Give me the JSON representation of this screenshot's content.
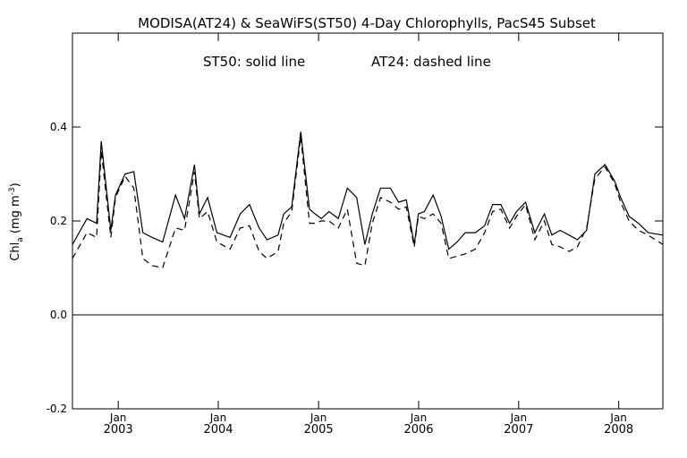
{
  "chart_data": {
    "type": "line",
    "title": "MODISA(AT24) & SeaWiFS(ST50) 4-Day Chlorophylls, PacS45 Subset",
    "annotation_left": "ST50: solid line",
    "annotation_right": "AT24: dashed line",
    "ylabel": "Chl",
    "ylabel_sub": "a",
    "ylabel_units_open": " (mg m",
    "ylabel_units_sup": "-3",
    "ylabel_units_close": ")",
    "ylim": [
      -0.2,
      0.6
    ],
    "yticks": [
      {
        "value": -0.2,
        "label": "-0.2"
      },
      {
        "value": 0.0,
        "label": "0.0"
      },
      {
        "value": 0.2,
        "label": "0.2"
      },
      {
        "value": 0.4,
        "label": "0.4"
      }
    ],
    "xlim": [
      "2002-07-18",
      "2008-06-10"
    ],
    "xticks_month": [
      {
        "date": "2003-01-01",
        "label": "Jan"
      },
      {
        "date": "2004-01-01",
        "label": "Jan"
      },
      {
        "date": "2005-01-01",
        "label": "Jan"
      },
      {
        "date": "2006-01-01",
        "label": "Jan"
      },
      {
        "date": "2007-01-01",
        "label": "Jan"
      },
      {
        "date": "2008-01-01",
        "label": "Jan"
      }
    ],
    "xticks_year": [
      {
        "date": "2003-01-01",
        "label": "2003"
      },
      {
        "date": "2004-01-01",
        "label": "2004"
      },
      {
        "date": "2005-01-01",
        "label": "2005"
      },
      {
        "date": "2006-01-01",
        "label": "2006"
      },
      {
        "date": "2007-01-01",
        "label": "2007"
      },
      {
        "date": "2008-01-01",
        "label": "2008"
      }
    ],
    "zero_line": 0.0,
    "grid": false,
    "legend": "none",
    "series": [
      {
        "line_style": "solid",
        "x": [
          "2002-07-18",
          "2002-09-09",
          "2002-10-14",
          "2002-10-31",
          "2002-12-05",
          "2002-12-22",
          "2003-01-26",
          "2003-02-27",
          "2003-04-01",
          "2003-05-05",
          "2003-06-12",
          "2003-07-29",
          "2003-08-31",
          "2003-10-06",
          "2003-10-24",
          "2003-11-23",
          "2003-12-27",
          "2004-02-13",
          "2004-03-21",
          "2004-04-24",
          "2004-05-29",
          "2004-06-27",
          "2004-08-06",
          "2004-08-27",
          "2004-09-25",
          "2004-10-28",
          "2004-11-29",
          "2004-12-19",
          "2005-01-11",
          "2005-02-08",
          "2005-03-14",
          "2005-04-16",
          "2005-05-20",
          "2005-06-19",
          "2005-07-16",
          "2005-08-15",
          "2005-09-20",
          "2005-10-20",
          "2005-11-17",
          "2005-12-16",
          "2005-12-31",
          "2006-01-22",
          "2006-02-23",
          "2006-03-24",
          "2006-04-21",
          "2006-05-21",
          "2006-06-20",
          "2006-07-27",
          "2006-08-30",
          "2006-09-28",
          "2006-10-28",
          "2006-11-29",
          "2006-12-24",
          "2007-01-26",
          "2007-03-01",
          "2007-04-05",
          "2007-05-02",
          "2007-06-01",
          "2007-07-04",
          "2007-08-03",
          "2007-09-06",
          "2007-10-06",
          "2007-11-12",
          "2007-12-17",
          "2008-01-08",
          "2008-02-08",
          "2008-03-13",
          "2008-04-17",
          "2008-06-10"
        ],
        "y": [
          0.15,
          0.205,
          0.195,
          0.37,
          0.18,
          0.255,
          0.3,
          0.305,
          0.175,
          0.165,
          0.155,
          0.255,
          0.205,
          0.32,
          0.215,
          0.25,
          0.175,
          0.165,
          0.215,
          0.235,
          0.185,
          0.16,
          0.17,
          0.215,
          0.23,
          0.39,
          0.225,
          0.215,
          0.205,
          0.22,
          0.205,
          0.27,
          0.25,
          0.15,
          0.215,
          0.27,
          0.27,
          0.24,
          0.245,
          0.15,
          0.215,
          0.22,
          0.255,
          0.21,
          0.14,
          0.155,
          0.175,
          0.175,
          0.19,
          0.235,
          0.235,
          0.195,
          0.22,
          0.24,
          0.175,
          0.215,
          0.17,
          0.18,
          0.17,
          0.16,
          0.18,
          0.3,
          0.32,
          0.285,
          0.25,
          0.21,
          0.195,
          0.175,
          0.17
        ]
      },
      {
        "line_style": "dashed",
        "x": [
          "2002-07-18",
          "2002-09-09",
          "2002-10-14",
          "2002-10-31",
          "2002-12-05",
          "2002-12-22",
          "2003-01-26",
          "2003-02-27",
          "2003-04-01",
          "2003-05-05",
          "2003-06-12",
          "2003-07-29",
          "2003-08-31",
          "2003-10-06",
          "2003-10-24",
          "2003-11-23",
          "2003-12-27",
          "2004-02-13",
          "2004-03-21",
          "2004-04-24",
          "2004-05-29",
          "2004-06-27",
          "2004-08-06",
          "2004-08-27",
          "2004-09-25",
          "2004-10-28",
          "2004-11-29",
          "2004-12-19",
          "2005-01-11",
          "2005-02-08",
          "2005-03-14",
          "2005-04-16",
          "2005-05-20",
          "2005-06-19",
          "2005-07-16",
          "2005-08-15",
          "2005-09-20",
          "2005-10-20",
          "2005-11-17",
          "2005-12-16",
          "2005-12-31",
          "2006-01-22",
          "2006-02-23",
          "2006-03-24",
          "2006-04-21",
          "2006-05-21",
          "2006-06-20",
          "2006-07-27",
          "2006-08-30",
          "2006-09-28",
          "2006-10-28",
          "2006-11-29",
          "2006-12-24",
          "2007-01-26",
          "2007-03-01",
          "2007-04-05",
          "2007-05-02",
          "2007-06-01",
          "2007-07-04",
          "2007-08-03",
          "2007-09-06",
          "2007-10-06",
          "2007-11-12",
          "2007-12-17",
          "2008-01-08",
          "2008-02-08",
          "2008-03-13",
          "2008-04-17",
          "2008-06-10"
        ],
        "y": [
          0.12,
          0.175,
          0.165,
          0.35,
          0.165,
          0.25,
          0.295,
          0.27,
          0.12,
          0.105,
          0.1,
          0.185,
          0.18,
          0.305,
          0.205,
          0.22,
          0.155,
          0.14,
          0.185,
          0.19,
          0.135,
          0.12,
          0.135,
          0.195,
          0.22,
          0.38,
          0.195,
          0.195,
          0.2,
          0.2,
          0.185,
          0.225,
          0.11,
          0.105,
          0.195,
          0.25,
          0.24,
          0.225,
          0.23,
          0.145,
          0.21,
          0.205,
          0.215,
          0.195,
          0.12,
          0.125,
          0.13,
          0.14,
          0.175,
          0.22,
          0.225,
          0.185,
          0.21,
          0.235,
          0.16,
          0.2,
          0.15,
          0.145,
          0.135,
          0.145,
          0.185,
          0.29,
          0.315,
          0.28,
          0.24,
          0.2,
          0.18,
          0.17,
          0.15
        ]
      }
    ]
  }
}
